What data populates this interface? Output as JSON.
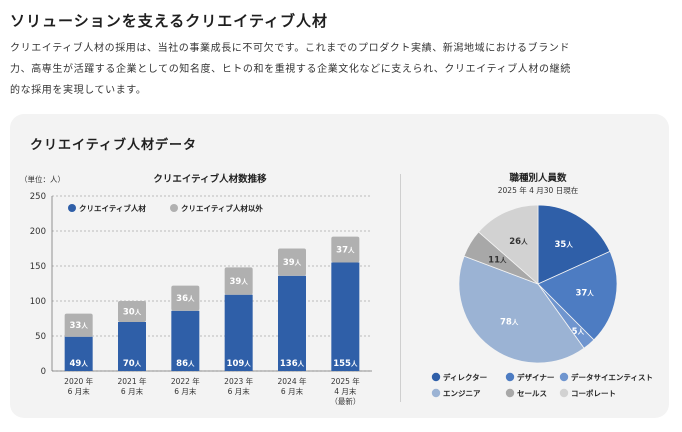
{
  "page": {
    "title": "ソリューションを支えるクリエイティブ人材",
    "intro_lines": [
      "クリエイティブ人材の採用は、当社の事業成長に不可欠です。これまでのプロダクト実績、新潟地域におけるブランド",
      "力、高専生が活躍する企業としての知名度、ヒトの和を重視する企業文化などに支えられ、クリエイティブ人材の継続",
      "的な採用を実現しています。"
    ],
    "panel_title": "クリエイティブ人材データ"
  },
  "colors": {
    "creative": "#2f5fa8",
    "non_creative": "#b0b0b0",
    "director": "#2f5fa8",
    "designer": "#4d7cc2",
    "data_scientist": "#6f95cf",
    "engineer": "#9bb3d4",
    "sales": "#a8a8a8",
    "corporate": "#d2d2d2"
  },
  "chart_data": [
    {
      "type": "bar",
      "title": "クリエイティブ人材数推移",
      "unit_label": "（単位：人）",
      "ylim": [
        0,
        250
      ],
      "y_ticks": [
        0,
        50,
        100,
        150,
        200,
        250
      ],
      "grid": true,
      "legend_position": "top",
      "value_suffix": "人",
      "categories": [
        [
          "2020 年",
          "6 月末"
        ],
        [
          "2021 年",
          "6 月末"
        ],
        [
          "2022 年",
          "6 月末"
        ],
        [
          "2023 年",
          "6 月末"
        ],
        [
          "2024 年",
          "6 月末"
        ],
        [
          "2025 年",
          "4 月末",
          "（最新）"
        ]
      ],
      "series": [
        {
          "name": "クリエイティブ人材",
          "color": "#2f5fa8",
          "values": [
            49,
            70,
            86,
            109,
            136,
            155
          ]
        },
        {
          "name": "クリエイティブ人材以外",
          "color": "#b0b0b0",
          "values": [
            33,
            30,
            36,
            39,
            39,
            37
          ]
        }
      ]
    },
    {
      "type": "pie",
      "title": "職種別人員数",
      "subtitle": "2025 年 4 月30 日現在",
      "value_suffix": "人",
      "legend_position": "bottom",
      "slices": [
        {
          "label": "ディレクター",
          "value": 35,
          "color": "#2f5fa8",
          "text_color": "#ffffff"
        },
        {
          "label": "デザイナー",
          "value": 37,
          "color": "#4d7cc2",
          "text_color": "#ffffff"
        },
        {
          "label": "データサイエンティスト",
          "value": 5,
          "color": "#6f95cf",
          "text_color": "#ffffff"
        },
        {
          "label": "エンジニア",
          "value": 78,
          "color": "#9bb3d4",
          "text_color": "#ffffff"
        },
        {
          "label": "セールス",
          "value": 11,
          "color": "#a8a8a8",
          "text_color": "#333333"
        },
        {
          "label": "コーポレート",
          "value": 26,
          "color": "#d2d2d2",
          "text_color": "#333333"
        }
      ]
    }
  ]
}
